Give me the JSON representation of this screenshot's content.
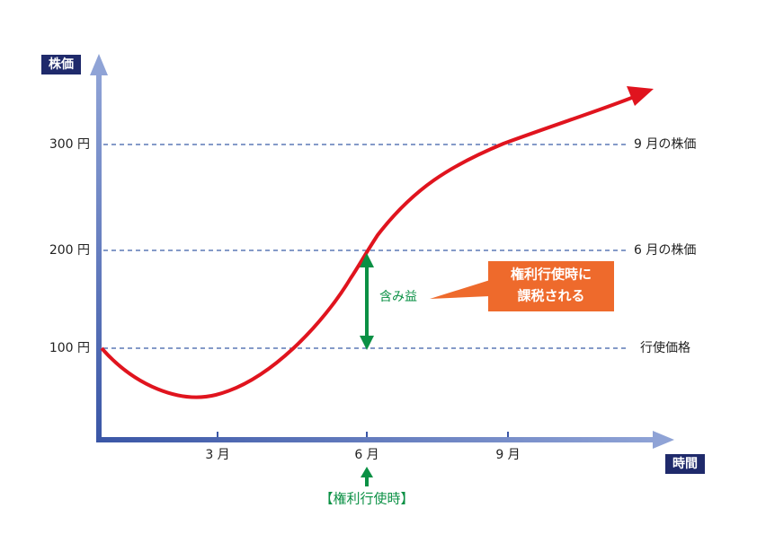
{
  "y_axis_label": "株価",
  "x_axis_label": "時間",
  "y_labels": [
    "300 円",
    "200 円",
    "100 円"
  ],
  "x_labels": [
    "3 月",
    "6 月",
    "9 月"
  ],
  "line_labels": [
    "9 月の株価",
    "6 月の株価",
    "行使価格"
  ],
  "gain_label": "含み益",
  "callout": [
    "権利行使時に",
    "課税される"
  ],
  "exercise_label": "【権利行使時】"
}
